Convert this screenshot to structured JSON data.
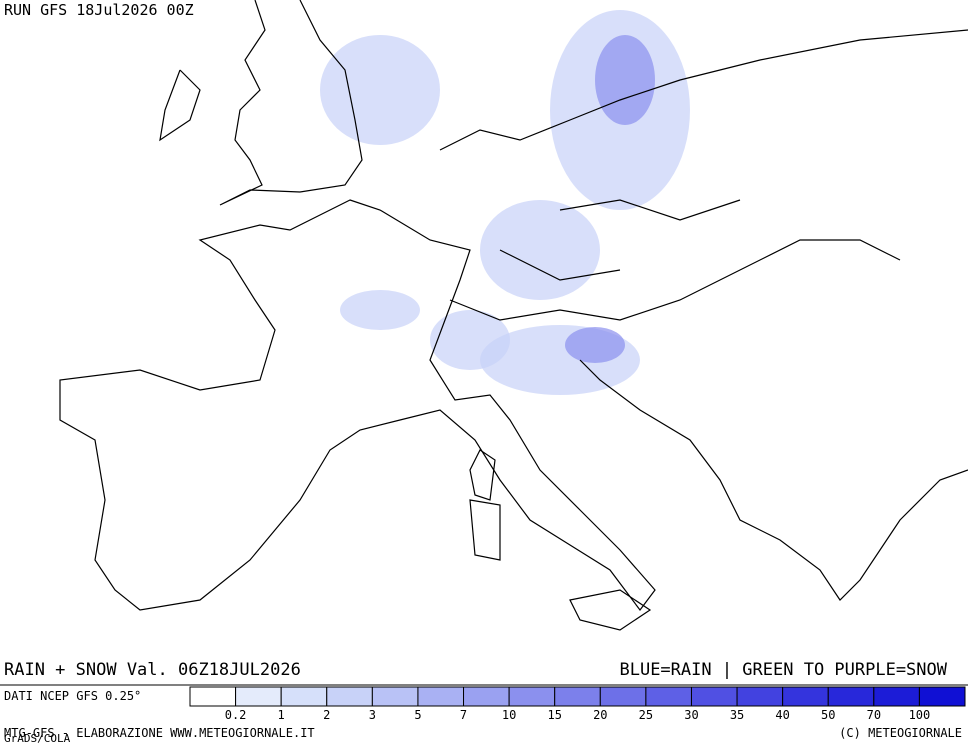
{
  "header": {
    "run": "RUN GFS 18Jul2026 00Z"
  },
  "caption": {
    "left": "RAIN + SNOW Val. 06Z18JUL2026",
    "right": "BLUE=RAIN | GREEN TO PURPLE=SNOW"
  },
  "legend": {
    "label": "DATI NCEP GFS 0.25°",
    "ticks": [
      0.2,
      1,
      2,
      3,
      5,
      7,
      10,
      15,
      20,
      25,
      30,
      35,
      40,
      50,
      70,
      100
    ],
    "colors": [
      "#ffffff",
      "#e4ebfb",
      "#d6e0fa",
      "#c8d2f8",
      "#b9c2f6",
      "#a9b1f3",
      "#9aa1f1",
      "#8b90ee",
      "#7c80eb",
      "#6d70e8",
      "#5e60e6",
      "#5050e3",
      "#4242e0",
      "#3434dd",
      "#2828da",
      "#1c1cd7",
      "#1010d4"
    ]
  },
  "footer": {
    "left": "MTG-GFS - ELABORAZIONE WWW.METEOGIORNALE.IT",
    "right": "(C) METEOGIORNALE",
    "credit": "GrADS/COLA"
  }
}
